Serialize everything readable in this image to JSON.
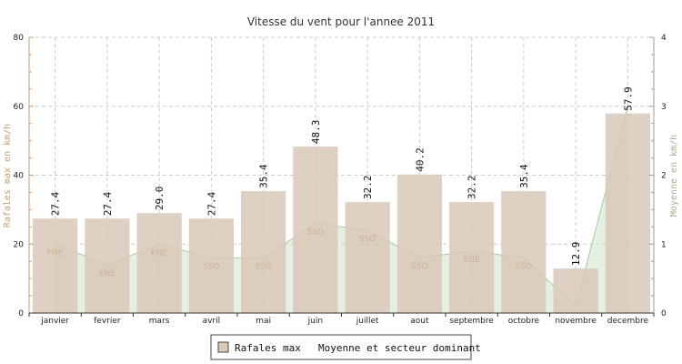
{
  "chart_data": {
    "type": "bar",
    "title": "Vitesse du vent pour l'annee 2011",
    "ylabel": "Rafales max en km/h",
    "ylabel_right": "Moyenne en km/h",
    "ylim": [
      0,
      80
    ],
    "yticks": [
      0,
      20,
      40,
      60,
      80
    ],
    "ylim_right": [
      0,
      4
    ],
    "yticks_right": [
      0,
      1,
      2,
      3,
      4
    ],
    "grid": true,
    "legend_placement": "bottom-center",
    "categories": [
      "janvier",
      "fevrier",
      "mars",
      "avril",
      "mai",
      "juin",
      "juillet",
      "aout",
      "septembre",
      "octobre",
      "novembre",
      "decembre"
    ],
    "series": [
      {
        "name": "Rafales max",
        "type": "bar",
        "axis": "left",
        "values": [
          27.4,
          27.4,
          29.0,
          27.4,
          35.4,
          48.3,
          32.2,
          40.2,
          32.2,
          35.4,
          12.9,
          57.9
        ],
        "labels": [
          "27.4",
          "27.4",
          "29.0",
          "27.4",
          "35.4",
          "48.3",
          "32.2",
          "40.2",
          "32.2",
          "35.4",
          "12.9",
          "57.9"
        ],
        "color": "#d8c8b8"
      },
      {
        "name": "Moyenne et secteur dominant",
        "type": "area",
        "axis": "right",
        "values": [
          1.0,
          0.7,
          1.0,
          0.8,
          0.8,
          1.3,
          1.2,
          0.8,
          0.9,
          0.8,
          0.1,
          3.0
        ],
        "sectors": [
          "ENE",
          "ENE",
          "ENE",
          "SSO",
          "SSO",
          "SSO",
          "SSO",
          "SSO",
          "ENE",
          "SSO",
          "",
          ""
        ],
        "color": "#c8dcc0"
      }
    ],
    "colors": {
      "bar_fill": "#d8c8b8",
      "area_fill": "#c8dcc0",
      "area_line": "#a8c8a0",
      "axis_left": "#c0a070",
      "axis_right": "#9a9a9a",
      "grid": "#cccccc",
      "sector_text": "#c8b49a"
    }
  }
}
